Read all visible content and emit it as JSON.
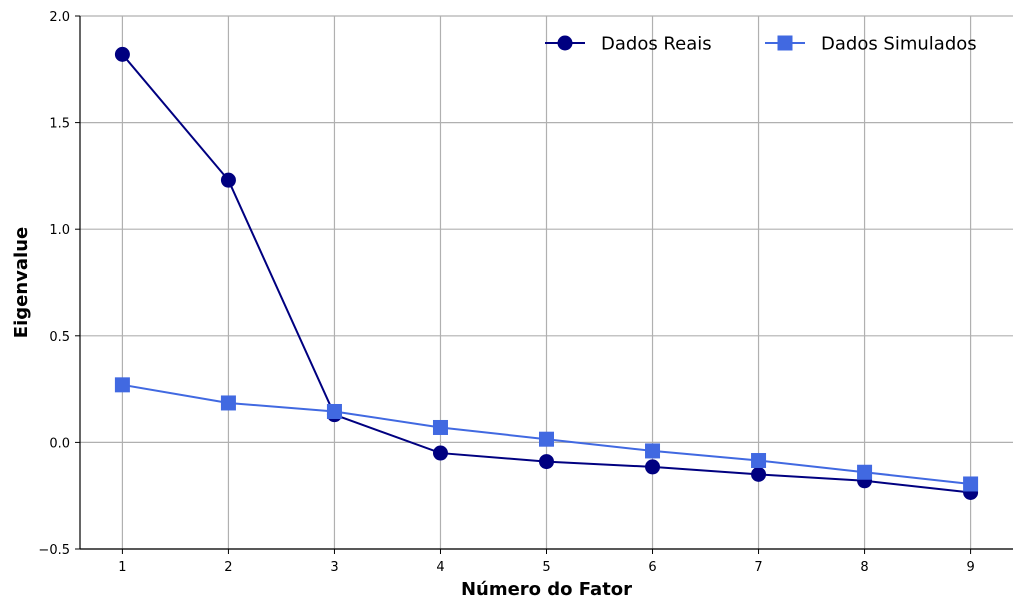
{
  "chart_data": {
    "type": "line",
    "title": "",
    "xlabel": "Número do Fator",
    "ylabel": "Eigenvalue",
    "x": [
      1,
      2,
      3,
      4,
      5,
      6,
      7,
      8,
      9
    ],
    "xticks": [
      "1",
      "2",
      "3",
      "4",
      "5",
      "6",
      "7",
      "8",
      "9"
    ],
    "xlim": [
      0.6,
      9.4
    ],
    "ylim": [
      -0.5,
      2.0
    ],
    "yticks": [
      -0.5,
      0.0,
      0.5,
      1.0,
      1.5,
      2.0
    ],
    "ytick_labels": [
      "−0.5",
      "0.0",
      "0.5",
      "1.0",
      "1.5",
      "2.0"
    ],
    "grid": true,
    "legend_position": "top-right",
    "series": [
      {
        "name": "Dados Reais",
        "marker": "circle",
        "color": "#000080",
        "values": [
          1.82,
          1.23,
          0.13,
          -0.05,
          -0.09,
          -0.115,
          -0.15,
          -0.18,
          -0.235
        ]
      },
      {
        "name": "Dados Simulados",
        "marker": "square",
        "color": "#4169E1",
        "values": [
          0.27,
          0.185,
          0.145,
          0.07,
          0.015,
          -0.04,
          -0.085,
          -0.14,
          -0.195
        ]
      }
    ]
  }
}
